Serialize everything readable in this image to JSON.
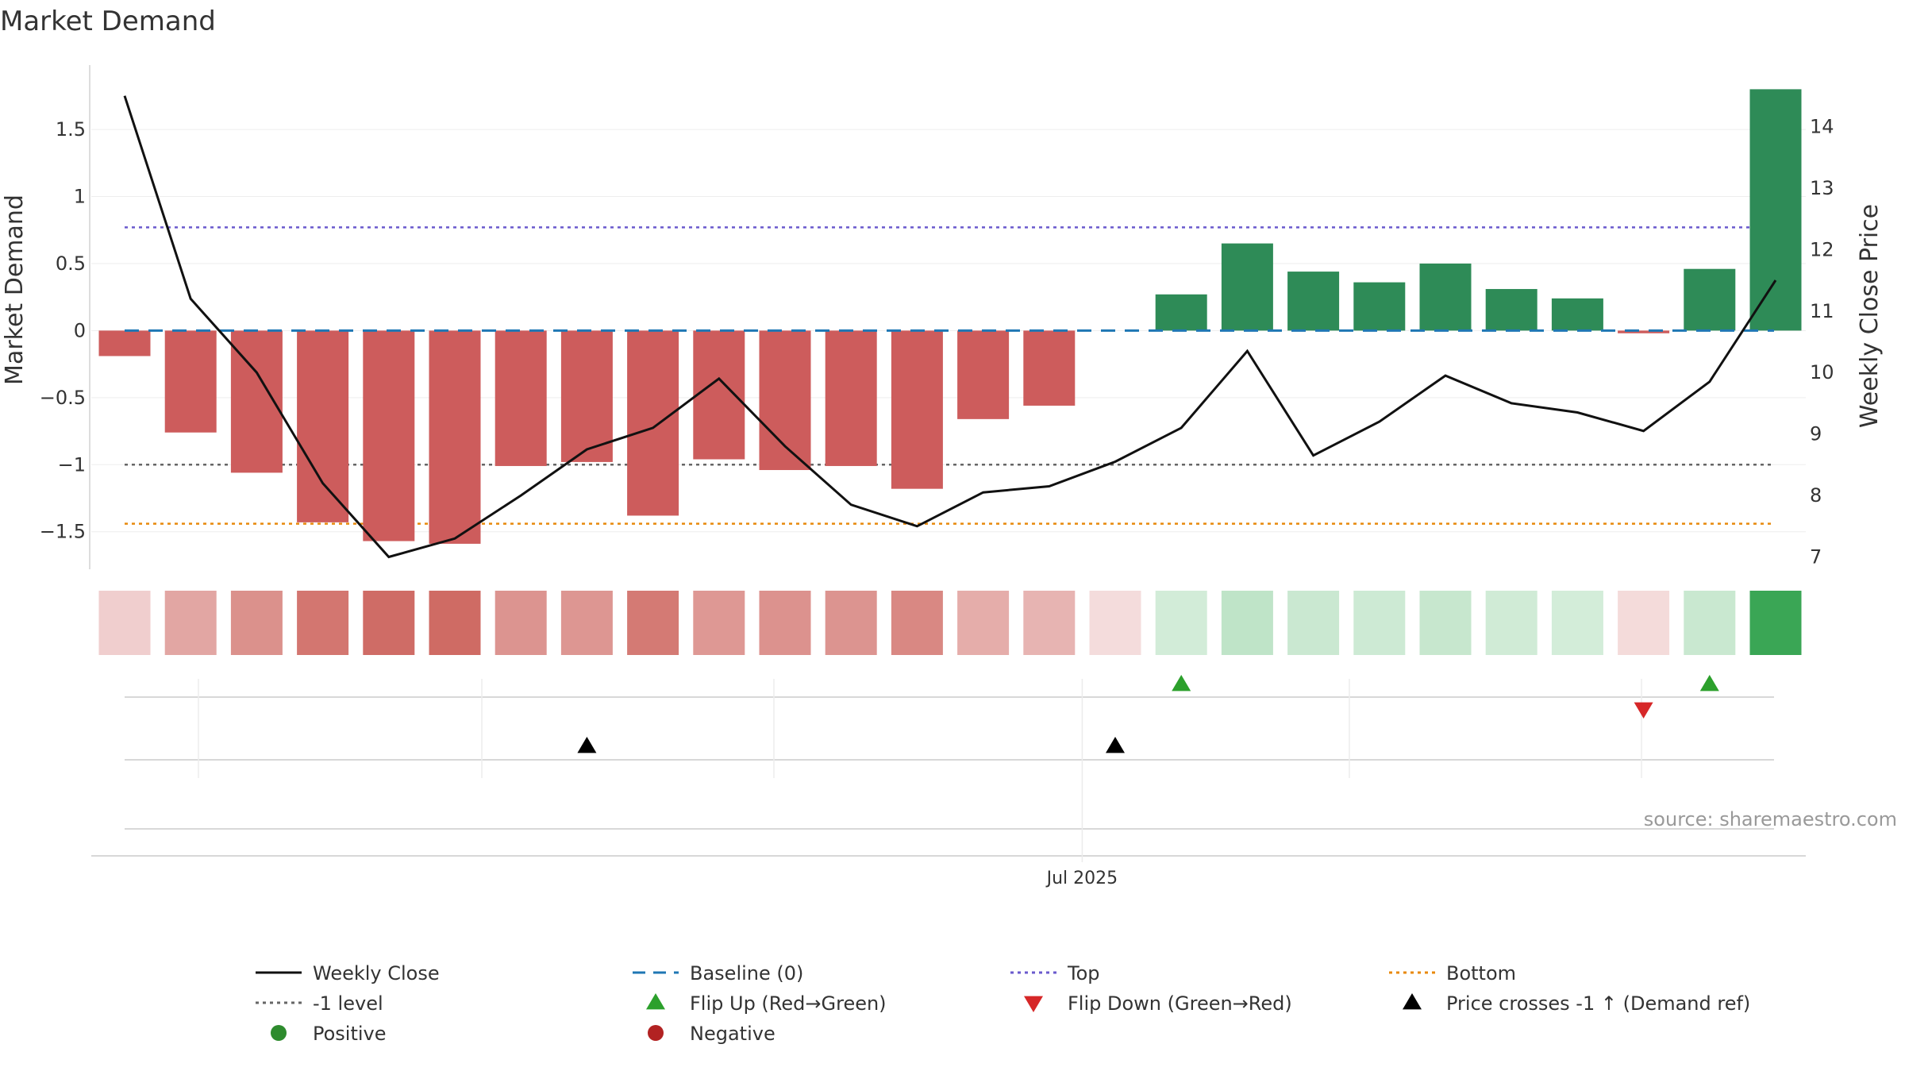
{
  "chart_data": {
    "type": "bar",
    "title": "Market Demand",
    "ylabel": "Market Demand",
    "y2label": "Weekly Close Price",
    "ylim": [
      -1.78,
      1.98
    ],
    "y2lim": [
      6.8,
      15.0
    ],
    "yticks": [
      1.5,
      1,
      0.5,
      0,
      -0.5,
      -1,
      -1.5
    ],
    "yticklabels": [
      "1.5",
      "1",
      "0.5",
      "0",
      "−0.5",
      "−1",
      "−1.5"
    ],
    "y2ticks": [
      14,
      13,
      12,
      11,
      10,
      9,
      8,
      7
    ],
    "x_tick_label": "Jul 2025",
    "x_tick_index": 14.5,
    "demand": [
      -0.19,
      -0.76,
      -1.06,
      -1.43,
      -1.57,
      -1.59,
      -1.01,
      -0.98,
      -1.38,
      -0.96,
      -1.04,
      -1.01,
      -1.18,
      -0.66,
      -0.56,
      0.0,
      0.27,
      0.65,
      0.44,
      0.36,
      0.5,
      0.31,
      0.24,
      -0.02,
      0.46,
      1.8
    ],
    "weekly_close": [
      14.5,
      11.2,
      10.0,
      8.2,
      7.0,
      7.3,
      8.0,
      8.75,
      9.1,
      9.9,
      8.8,
      7.85,
      7.5,
      8.05,
      8.15,
      8.55,
      9.1,
      10.35,
      8.65,
      9.2,
      9.95,
      9.5,
      9.35,
      9.05,
      9.85,
      11.5
    ],
    "lines": {
      "top": 0.77,
      "minus_one": -1.0,
      "bottom": -1.44,
      "baseline": 0
    },
    "flip_up_indices": [
      16,
      24
    ],
    "flip_down_indices": [
      23
    ],
    "price_cross_indices": [
      7,
      15
    ],
    "legend": [
      {
        "label": "Weekly Close",
        "kind": "solid",
        "color": "#111111"
      },
      {
        "label": "Baseline (0)",
        "kind": "dashed",
        "color": "#1f77b4"
      },
      {
        "label": "Top",
        "kind": "dotted",
        "color": "#6a5acd"
      },
      {
        "label": "Bottom",
        "kind": "dotted",
        "color": "#e8890c"
      },
      {
        "label": "-1 level",
        "kind": "dotted",
        "color": "#666666"
      },
      {
        "label": "Flip Up (Red→Green)",
        "kind": "tri-up",
        "color": "#2ca02c"
      },
      {
        "label": "Flip Down (Green→Red)",
        "kind": "tri-down",
        "color": "#d62728"
      },
      {
        "label": "Price crosses -1 ↑ (Demand ref)",
        "kind": "tri-up",
        "color": "#000000"
      },
      {
        "label": "Positive",
        "kind": "dot",
        "color": "#2e8b2e"
      },
      {
        "label": "Negative",
        "kind": "dot",
        "color": "#b22222"
      }
    ],
    "colors": {
      "positive": "#2e8b57",
      "negative": "#cd5c5c"
    }
  },
  "source": "source: sharemaestro.com"
}
